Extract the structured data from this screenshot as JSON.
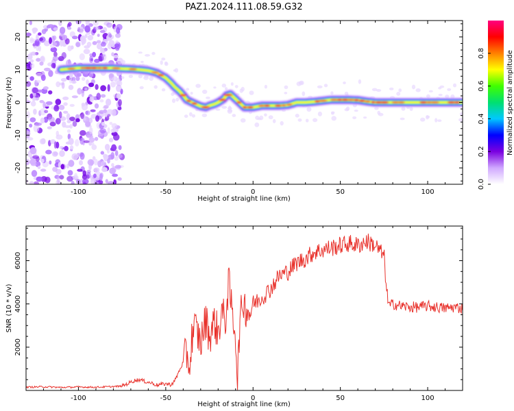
{
  "chart_data": [
    {
      "type": "heatmap",
      "title": "PAZ1.2024.111.08.59.G32",
      "xlabel": "Height of straight line (km)",
      "ylabel": "Frequency (Hz)",
      "xlim": [
        -130,
        120
      ],
      "ylim": [
        -25,
        25
      ],
      "xticks": [
        -100,
        -50,
        0,
        50,
        100
      ],
      "yticks": [
        -20,
        -10,
        0,
        10,
        20
      ],
      "colorbar": {
        "label": "Normalized spectral amplitude",
        "range": [
          0.0,
          1.0
        ],
        "ticks": [
          0.0,
          0.2,
          0.4,
          0.6,
          0.8
        ],
        "colormap": [
          "#ffffff",
          "#d0a8ff",
          "#7a00e0",
          "#0000ff",
          "#00c8ff",
          "#00e070",
          "#40ff00",
          "#ffff00",
          "#ff8000",
          "#ff0000",
          "#ff0080"
        ]
      },
      "ridge": {
        "x": [
          -110,
          -100,
          -90,
          -80,
          -75,
          -70,
          -65,
          -60,
          -55,
          -50,
          -47,
          -45,
          -42,
          -40,
          -38,
          -35,
          -30,
          -27,
          -25,
          -22,
          -20,
          -17,
          -15,
          -13,
          -10,
          -8,
          -5,
          0,
          5,
          10,
          15,
          20,
          25,
          30,
          35,
          40,
          45,
          50,
          55,
          60,
          65,
          70,
          80,
          90,
          100,
          110,
          120
        ],
        "y": [
          10,
          10.5,
          10.5,
          10.5,
          10.3,
          10.2,
          10,
          9.7,
          9,
          7.5,
          6,
          4.8,
          3.4,
          2.2,
          0.8,
          0,
          -1.2,
          -1.5,
          -1.0,
          -0.5,
          0,
          1.0,
          2.2,
          2.5,
          1.0,
          0,
          -1.5,
          -1.5,
          -1.0,
          -1.0,
          -1.0,
          -0.8,
          0,
          0,
          0.2,
          0.5,
          0.8,
          0.8,
          0.8,
          0.7,
          0.3,
          0,
          0,
          0,
          0,
          0,
          0
        ]
      },
      "noise_region_x": [
        -130,
        -75
      ]
    },
    {
      "type": "line",
      "xlabel": "Height of straight line (km)",
      "ylabel": "SNR (10 * v/v)",
      "xlim": [
        -130,
        120
      ],
      "ylim": [
        0,
        7600
      ],
      "xticks": [
        -100,
        -50,
        0,
        50,
        100
      ],
      "yticks": [
        2000,
        4000,
        6000
      ],
      "series": [
        {
          "color": "#e8302a",
          "x": [
            -130,
            -120,
            -110,
            -100,
            -90,
            -80,
            -75,
            -72,
            -68,
            -65,
            -62,
            -58,
            -55,
            -50,
            -47,
            -45,
            -42,
            -40,
            -38,
            -36,
            -35,
            -33,
            -30,
            -27,
            -25,
            -22,
            -20,
            -18,
            -16,
            -14,
            -12,
            -10,
            -9,
            -8,
            -6,
            -4,
            -2,
            0,
            5,
            10,
            15,
            20,
            25,
            30,
            35,
            40,
            45,
            50,
            55,
            60,
            65,
            70,
            75,
            77,
            78,
            80,
            85,
            90,
            95,
            100,
            105,
            110,
            115,
            120
          ],
          "y": [
            150,
            170,
            140,
            160,
            150,
            180,
            200,
            310,
            460,
            500,
            420,
            340,
            250,
            310,
            270,
            420,
            950,
            1300,
            1700,
            1100,
            2600,
            2900,
            2200,
            3300,
            2500,
            3200,
            2600,
            3700,
            3100,
            5000,
            3600,
            2700,
            250,
            2500,
            4200,
            3800,
            3600,
            4000,
            4300,
            4700,
            5300,
            5500,
            5900,
            6100,
            6400,
            6500,
            6600,
            6700,
            6800,
            6700,
            6900,
            6700,
            6200,
            4200,
            3900,
            4000,
            3900,
            3850,
            3850,
            3900,
            3850,
            3800,
            3850,
            3800
          ]
        }
      ]
    }
  ]
}
